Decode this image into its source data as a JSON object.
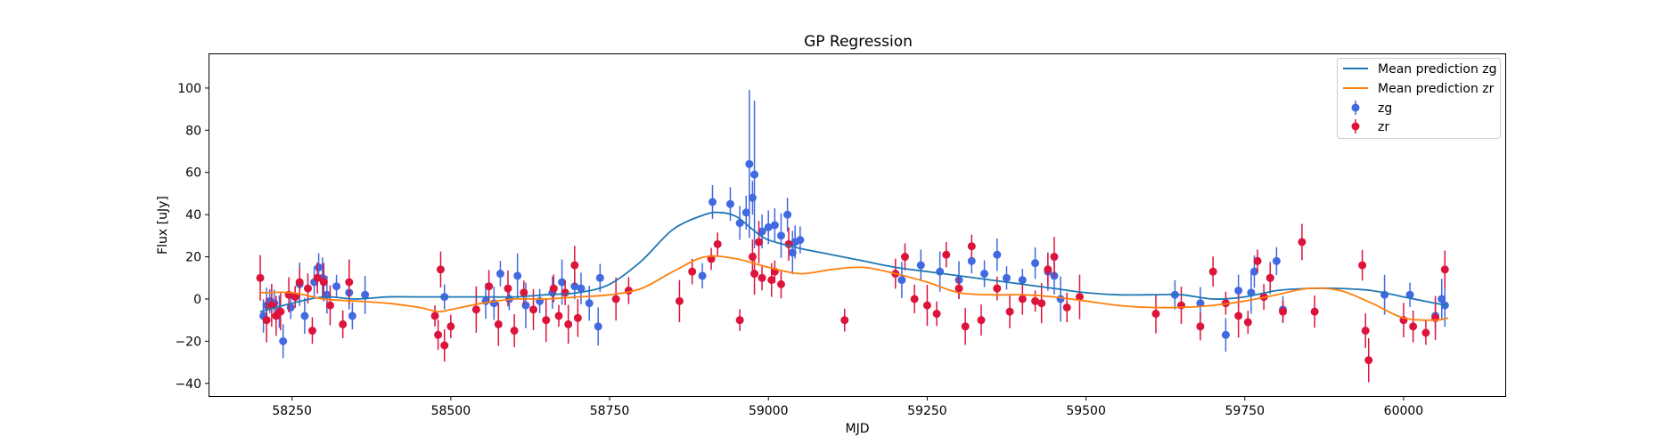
{
  "chart_data": {
    "type": "scatter",
    "title": "GP Regression",
    "xlabel": "MJD",
    "ylabel": "Flux [uJy]",
    "xlim": [
      58120,
      60160
    ],
    "ylim": [
      -46,
      116
    ],
    "xticks": [
      58250,
      58500,
      58750,
      59000,
      59250,
      59500,
      59750,
      60000
    ],
    "yticks": [
      -40,
      -20,
      0,
      20,
      40,
      60,
      80,
      100
    ],
    "legend": {
      "position": "top-right",
      "entries": [
        "Mean prediction zg",
        "Mean prediction zr",
        "zg",
        "zr"
      ]
    },
    "colors": {
      "mean_zg": "#1f77b4",
      "mean_zr": "#ff7f0e",
      "zg": "#4169e1",
      "zr": "#dc143c"
    },
    "series": [
      {
        "name": "Mean prediction zg",
        "kind": "line",
        "x": [
          58200,
          58250,
          58300,
          58350,
          58400,
          58450,
          58500,
          58550,
          58600,
          58650,
          58700,
          58750,
          58800,
          58850,
          58900,
          58925,
          58950,
          58975,
          59000,
          59050,
          59100,
          59150,
          59200,
          59250,
          59300,
          59350,
          59400,
          59450,
          59500,
          59550,
          59600,
          59650,
          59700,
          59750,
          59800,
          59850,
          59900,
          59950,
          60000,
          60050,
          60070
        ],
        "y": [
          -6,
          -2,
          1,
          0,
          1,
          1,
          1,
          1,
          1,
          2,
          3,
          7,
          18,
          33,
          40,
          41,
          39,
          33,
          28,
          24,
          21,
          18,
          15,
          13,
          11,
          9,
          7,
          5,
          3,
          2,
          2,
          2,
          0,
          1,
          4,
          5,
          5,
          4,
          1,
          -2,
          -3
        ]
      },
      {
        "name": "Mean prediction zr",
        "kind": "line",
        "x": [
          58200,
          58250,
          58300,
          58350,
          58400,
          58450,
          58480,
          58500,
          58550,
          58600,
          58650,
          58700,
          58750,
          58800,
          58850,
          58900,
          58950,
          59000,
          59050,
          59100,
          59150,
          59200,
          59250,
          59300,
          59350,
          59400,
          59450,
          59500,
          59550,
          59600,
          59650,
          59700,
          59750,
          59800,
          59850,
          59900,
          59950,
          60000,
          60050,
          60070
        ],
        "y": [
          3,
          3,
          0,
          -1,
          -2,
          -4,
          -6,
          -5,
          -2,
          0,
          0,
          1,
          2,
          5,
          13,
          20,
          19,
          15,
          12,
          14,
          15,
          12,
          8,
          3,
          2,
          2,
          1,
          -1,
          -3,
          -4,
          -4,
          -3,
          -1,
          2,
          5,
          4,
          -2,
          -9,
          -10,
          -9
        ]
      },
      {
        "name": "zg",
        "kind": "points",
        "x": [
          58205,
          58210,
          58215,
          58222,
          58230,
          58236,
          58248,
          58262,
          58270,
          58285,
          58292,
          58298,
          58305,
          58320,
          58340,
          58345,
          58365,
          58490,
          58555,
          58568,
          58578,
          58592,
          58605,
          58618,
          58640,
          58660,
          58675,
          58695,
          58705,
          58718,
          58732,
          58735,
          58896,
          58912,
          58940,
          58955,
          58965,
          58970,
          58975,
          58978,
          58990,
          59000,
          59010,
          59020,
          59030,
          59038,
          59042,
          59050,
          59210,
          59240,
          59270,
          59300,
          59320,
          59340,
          59360,
          59375,
          59400,
          59420,
          59440,
          59450,
          59460,
          59640,
          59680,
          59720,
          59740,
          59760,
          59765,
          59790,
          59800,
          59810,
          59970,
          60010,
          60050,
          60060,
          60065
        ],
        "y": [
          -8,
          -3,
          -1,
          -2,
          -6,
          -20,
          -4,
          7,
          -8,
          8,
          15,
          10,
          2,
          6,
          3,
          -8,
          2,
          1,
          -1,
          -2,
          12,
          0,
          11,
          -3,
          -1,
          3,
          8,
          6,
          5,
          -2,
          -13,
          10,
          11,
          46,
          45,
          36,
          41,
          64,
          48,
          59,
          32,
          34,
          35,
          30,
          40,
          22,
          27,
          28,
          9,
          16,
          13,
          9,
          18,
          12,
          21,
          10,
          9,
          17,
          13,
          11,
          0,
          2,
          -2,
          -17,
          4,
          3,
          13,
          10,
          18,
          -5,
          2,
          2,
          -8,
          0,
          -3
        ]
      },
      {
        "name": "zr",
        "kind": "points",
        "x": [
          58200,
          58210,
          58218,
          58225,
          58232,
          58245,
          58255,
          58262,
          58275,
          58282,
          58290,
          58300,
          58310,
          58330,
          58340,
          58475,
          58480,
          58484,
          58490,
          58500,
          58540,
          58560,
          58575,
          58590,
          58600,
          58615,
          58630,
          58650,
          58662,
          58670,
          58680,
          58685,
          58695,
          58700,
          58760,
          58780,
          58860,
          58880,
          58910,
          58920,
          58955,
          58975,
          58978,
          58985,
          58990,
          59005,
          59010,
          59020,
          59032,
          59120,
          59200,
          59215,
          59230,
          59250,
          59265,
          59280,
          59300,
          59310,
          59320,
          59335,
          59360,
          59380,
          59400,
          59420,
          59430,
          59440,
          59450,
          59470,
          59490,
          59610,
          59650,
          59680,
          59700,
          59720,
          59740,
          59755,
          59770,
          59780,
          59790,
          59810,
          59840,
          59860,
          59935,
          59940,
          59945,
          60000,
          60015,
          60035,
          60050,
          60065
        ],
        "y": [
          10,
          -10,
          -3,
          -8,
          -6,
          2,
          1,
          8,
          5,
          -15,
          10,
          8,
          -3,
          -12,
          8,
          -8,
          -17,
          14,
          -22,
          -13,
          -5,
          6,
          -12,
          5,
          -15,
          3,
          -5,
          -10,
          5,
          -8,
          3,
          -12,
          16,
          -9,
          0,
          4,
          -1,
          13,
          19,
          26,
          -10,
          20,
          12,
          27,
          10,
          9,
          13,
          7,
          26,
          -10,
          12,
          20,
          0,
          -3,
          -7,
          21,
          5,
          -13,
          25,
          -10,
          5,
          -6,
          0,
          -1,
          -2,
          14,
          20,
          -4,
          1,
          -7,
          -3,
          -13,
          13,
          -2,
          -8,
          -11,
          18,
          1,
          10,
          -6,
          27,
          -6,
          16,
          -15,
          -29,
          -10,
          -13,
          -16,
          -9,
          14
        ]
      }
    ]
  }
}
